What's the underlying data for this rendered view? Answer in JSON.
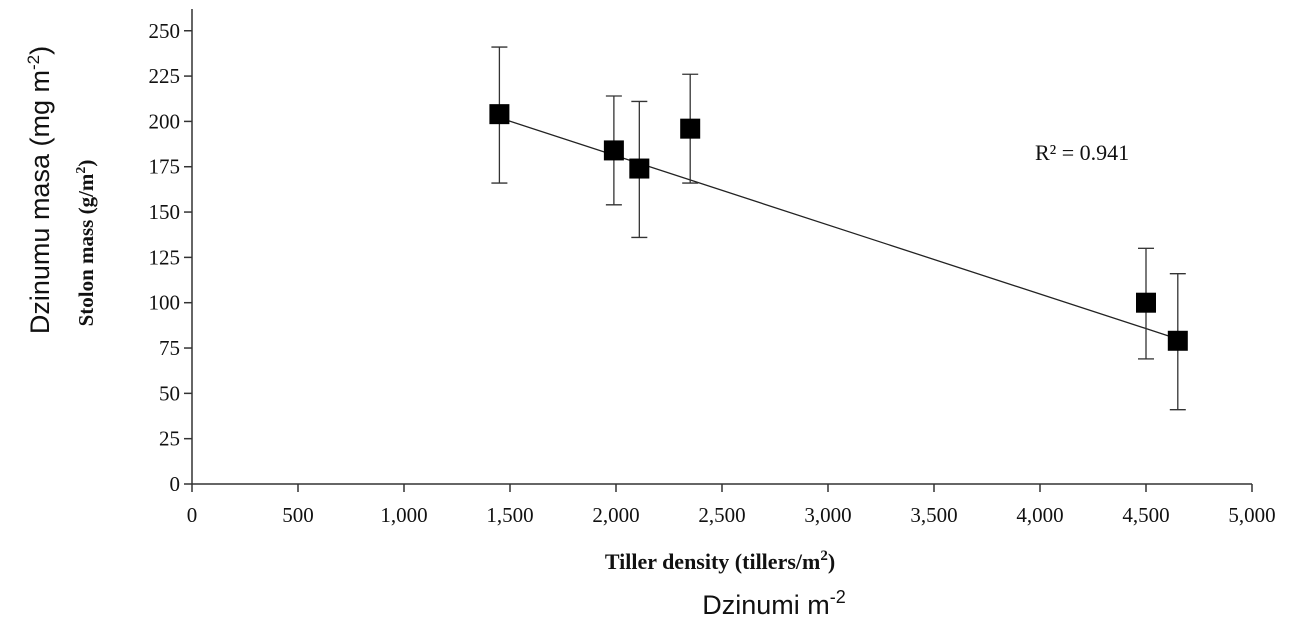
{
  "chart_data": {
    "type": "scatter",
    "x_axis": {
      "label_prefix": "Tiller density (tillers/m",
      "label_sup": "2",
      "label_suffix": ")",
      "alt_label_base": "Dzinumi m",
      "alt_label_sup": "-2",
      "ticks": [
        0,
        500,
        1000,
        1500,
        2000,
        2500,
        3000,
        3500,
        4000,
        4500,
        5000
      ],
      "tick_labels": [
        "0",
        "500",
        "1,000",
        "1,500",
        "2,000",
        "2,500",
        "3,000",
        "3,500",
        "4,000",
        "4,500",
        "5,000"
      ],
      "range": [
        0,
        5000
      ]
    },
    "y_axis": {
      "label_prefix": "Stolon mass (g/m",
      "label_sup": "2",
      "label_suffix": ")",
      "alt_label_base": "Dzinumu masa (mg m",
      "alt_label_sup": "-2",
      "alt_label_suffix": ")",
      "ticks": [
        0,
        25,
        50,
        75,
        100,
        125,
        150,
        175,
        200,
        225,
        250
      ],
      "tick_labels": [
        "0",
        "25",
        "50",
        "75",
        "100",
        "125",
        "150",
        "175",
        "200",
        "225",
        "250"
      ],
      "range": [
        0,
        262
      ]
    },
    "points": [
      {
        "x": 1450,
        "y": 204,
        "err_low": 166,
        "err_high": 241
      },
      {
        "x": 1990,
        "y": 184,
        "err_low": 154,
        "err_high": 214
      },
      {
        "x": 2110,
        "y": 174,
        "err_low": 136,
        "err_high": 211
      },
      {
        "x": 2350,
        "y": 196,
        "err_low": 166,
        "err_high": 226
      },
      {
        "x": 4500,
        "y": 100,
        "err_low": 69,
        "err_high": 130
      },
      {
        "x": 4650,
        "y": 79,
        "err_low": 41,
        "err_high": 116
      }
    ],
    "trendline": {
      "x": [
        1450,
        4650
      ],
      "y": [
        202,
        80
      ]
    },
    "annotation": "R² = 0.941",
    "grid": false,
    "legend": "none"
  }
}
